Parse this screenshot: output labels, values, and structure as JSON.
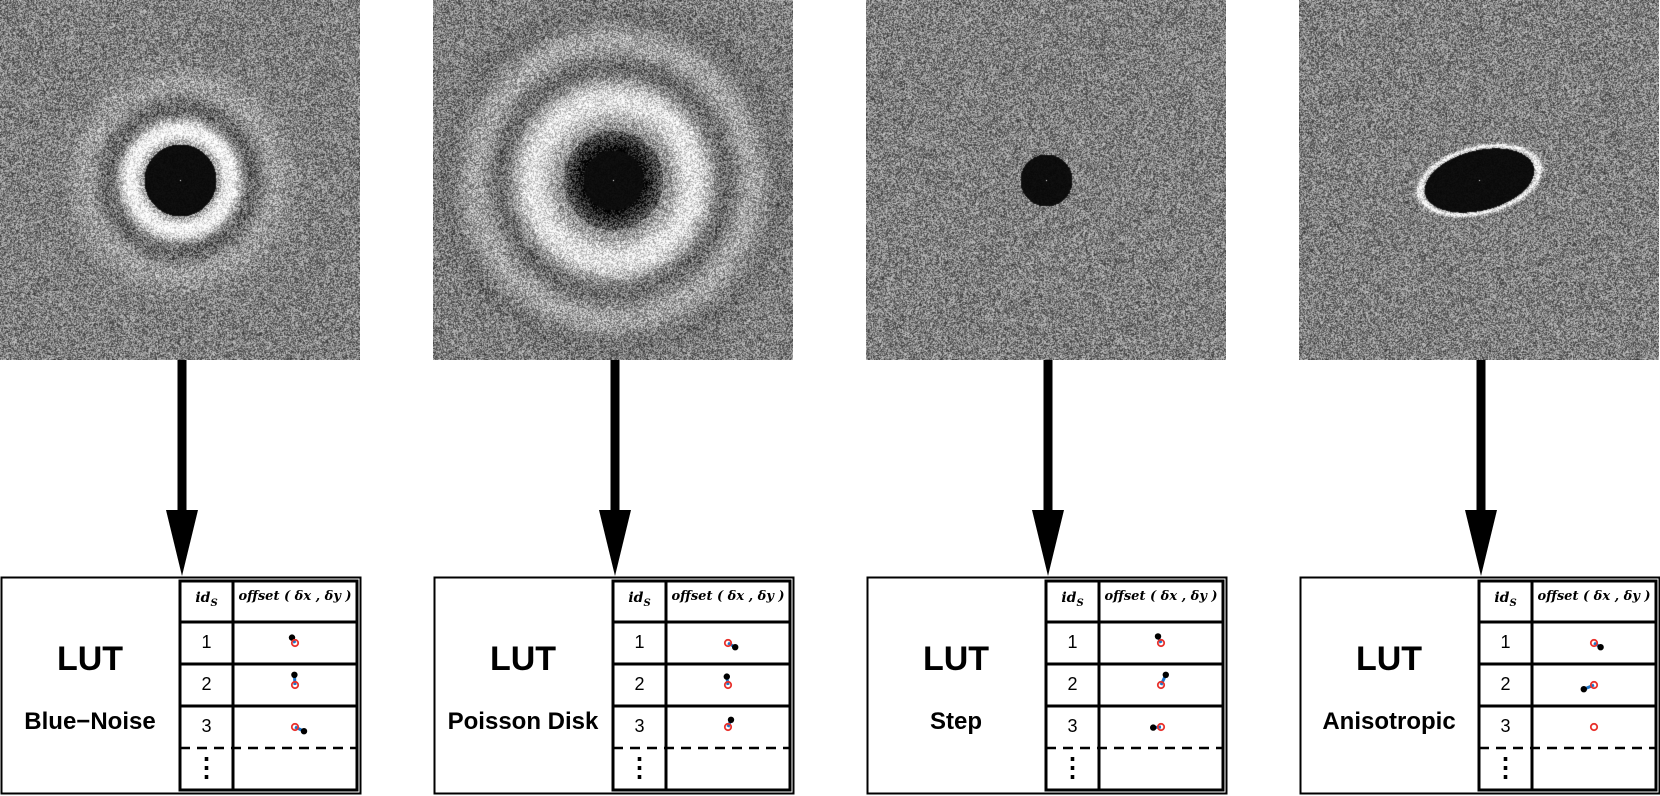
{
  "header_labels": {
    "id_main": "id",
    "id_sub": "S",
    "offset": "offset ( δx , δy )"
  },
  "panels": [
    {
      "kind": "blue",
      "lut_label": "LUT",
      "name": "Blue−Noise",
      "rows": [
        "1",
        "2",
        "3"
      ],
      "ellipsis": "⋮",
      "offsets": [
        {
          "dx": -0.25,
          "dy": -0.45
        },
        {
          "dx": -0.05,
          "dy": -0.85
        },
        {
          "dx": 0.75,
          "dy": 0.35
        }
      ]
    },
    {
      "kind": "poisson",
      "lut_label": "LUT",
      "name": "Poisson Disk",
      "rows": [
        "1",
        "2",
        "3"
      ],
      "ellipsis": "⋮",
      "offsets": [
        {
          "dx": 0.6,
          "dy": 0.35
        },
        {
          "dx": -0.1,
          "dy": -0.7
        },
        {
          "dx": 0.25,
          "dy": -0.6
        }
      ]
    },
    {
      "kind": "step",
      "lut_label": "LUT",
      "name": "Step",
      "rows": [
        "1",
        "2",
        "3"
      ],
      "ellipsis": "⋮",
      "offsets": [
        {
          "dx": -0.25,
          "dy": -0.55
        },
        {
          "dx": 0.4,
          "dy": -0.85
        },
        {
          "dx": -0.65,
          "dy": 0.05
        }
      ]
    },
    {
      "kind": "aniso",
      "lut_label": "LUT",
      "name": "Anisotropic",
      "rows": [
        "1",
        "2",
        "3"
      ],
      "ellipsis": "⋮",
      "offsets": [
        {
          "dx": 0.55,
          "dy": 0.35
        },
        {
          "dx": -0.85,
          "dy": 0.35
        },
        {
          "dx": 0.0,
          "dy": 0.0
        }
      ]
    }
  ]
}
